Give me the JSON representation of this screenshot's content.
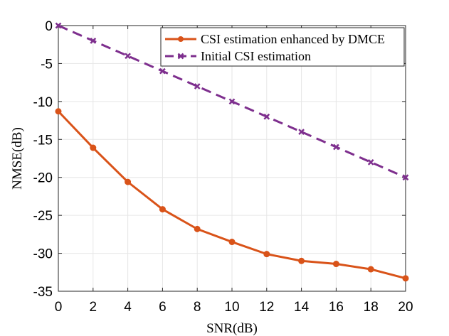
{
  "chart_data": {
    "type": "line",
    "title": "",
    "xlabel": "SNR(dB)",
    "ylabel": "NMSE(dB)",
    "xlim": [
      0,
      20
    ],
    "ylim": [
      -35,
      0
    ],
    "xticks": [
      0,
      2,
      4,
      6,
      8,
      10,
      12,
      14,
      16,
      18,
      20
    ],
    "yticks": [
      0,
      -5,
      -10,
      -15,
      -20,
      -25,
      -30,
      -35
    ],
    "xtick_labels": [
      "0",
      "2",
      "4",
      "6",
      "8",
      "10",
      "12",
      "14",
      "16",
      "18",
      "20"
    ],
    "ytick_labels": [
      "0",
      "-5",
      "-10",
      "-15",
      "-20",
      "-25",
      "-30",
      "-35"
    ],
    "grid": true,
    "legend_position": "top-right",
    "x": [
      0,
      2,
      4,
      6,
      8,
      10,
      12,
      14,
      16,
      18,
      20
    ],
    "series": [
      {
        "name": "CSI estimation enhanced by DMCE",
        "values": [
          -11.3,
          -16.1,
          -20.6,
          -24.2,
          -26.8,
          -28.5,
          -30.1,
          -31.0,
          -31.4,
          -32.1,
          -33.3
        ],
        "color": "#D95319",
        "line_style": "solid",
        "marker": "circle"
      },
      {
        "name": "Initial CSI estimation",
        "values": [
          0,
          -2,
          -4,
          -6,
          -8,
          -10,
          -12,
          -14,
          -16,
          -18,
          -20
        ],
        "color": "#7E2F8E",
        "line_style": "dashed",
        "marker": "x"
      }
    ]
  }
}
